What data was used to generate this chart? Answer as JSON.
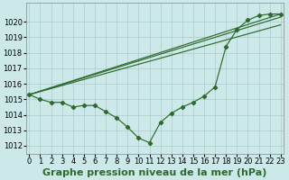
{
  "title": "Graphe pression niveau de la mer (hPa)",
  "bg_color": "#cce8e8",
  "line_color": "#2d6a2d",
  "grid_color": "#aacccc",
  "x_ticks": [
    0,
    1,
    2,
    3,
    4,
    5,
    6,
    7,
    8,
    9,
    10,
    11,
    12,
    13,
    14,
    15,
    16,
    17,
    18,
    19,
    20,
    21,
    22,
    23
  ],
  "y_ticks": [
    1012,
    1013,
    1014,
    1015,
    1016,
    1017,
    1018,
    1019,
    1020
  ],
  "ylim": [
    1011.5,
    1021.2
  ],
  "xlim": [
    -0.3,
    23.3
  ],
  "series_main": [
    1015.3,
    1015.0,
    1014.8,
    1014.8,
    1014.5,
    1014.6,
    1014.6,
    1014.2,
    1013.8,
    1013.2,
    1012.5,
    1012.2,
    1013.5,
    1014.1,
    1014.5,
    1014.8,
    1015.2,
    1015.8,
    1018.4,
    1019.5,
    1020.1,
    1020.4,
    1020.5,
    1020.5
  ],
  "line2_x": [
    0,
    23
  ],
  "line2_y": [
    1015.3,
    1020.5
  ],
  "line3_x": [
    0,
    23
  ],
  "line3_y": [
    1015.3,
    1020.3
  ],
  "line4_x": [
    0,
    23
  ],
  "line4_y": [
    1015.3,
    1019.8
  ],
  "title_fontsize": 8,
  "tick_fontsize": 6
}
